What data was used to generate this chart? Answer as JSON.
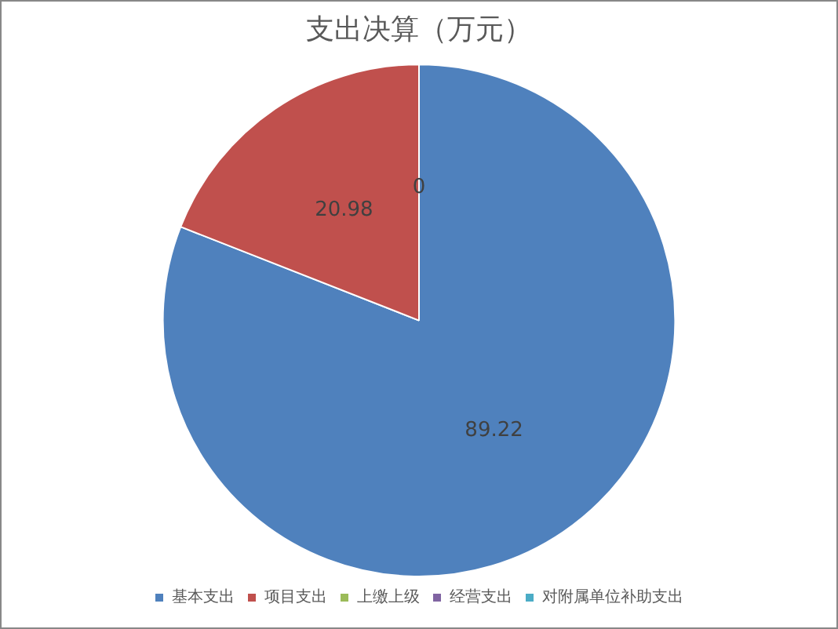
{
  "chart_data": {
    "type": "pie",
    "title": "支出决算（万元）",
    "categories": [
      "基本支出",
      "项目支出",
      "上缴上级",
      "经营支出",
      "对附属单位补助支出"
    ],
    "values": [
      89.22,
      20.98,
      0,
      0,
      0
    ],
    "colors": [
      "#4f81bd",
      "#c0504d",
      "#9bbb59",
      "#8064a2",
      "#4bacc6"
    ],
    "value_labels": [
      "89.22",
      "20.98",
      "0",
      null,
      null
    ],
    "legend": "bottom"
  }
}
